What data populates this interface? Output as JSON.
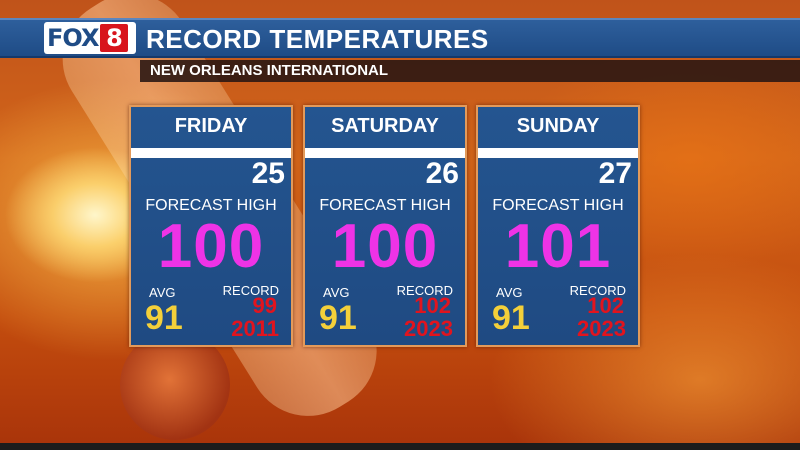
{
  "header": {
    "logo_text": "FOX",
    "logo_number": "8",
    "title": "RECORD TEMPERATURES",
    "subtitle": "NEW ORLEANS INTERNATIONAL"
  },
  "colors": {
    "header_blue": "#1f4c86",
    "card_blue": "#245590",
    "forecast_high": "#ee33e6",
    "avg": "#f4d03a",
    "record": "#e1141e",
    "card_border": "#e39a5a"
  },
  "days": [
    {
      "day": "FRIDAY",
      "date": "25",
      "forecast_label": "FORECAST HIGH",
      "forecast_high": "100",
      "avg_label": "AVG",
      "avg": "91",
      "record_label": "RECORD",
      "record": "99",
      "record_year": "2011"
    },
    {
      "day": "SATURDAY",
      "date": "26",
      "forecast_label": "FORECAST HIGH",
      "forecast_high": "100",
      "avg_label": "AVG",
      "avg": "91",
      "record_label": "RECORD",
      "record": "102",
      "record_year": "2023"
    },
    {
      "day": "SUNDAY",
      "date": "27",
      "forecast_label": "FORECAST HIGH",
      "forecast_high": "101",
      "avg_label": "AVG",
      "avg": "91",
      "record_label": "RECORD",
      "record": "102",
      "record_year": "2023"
    }
  ]
}
